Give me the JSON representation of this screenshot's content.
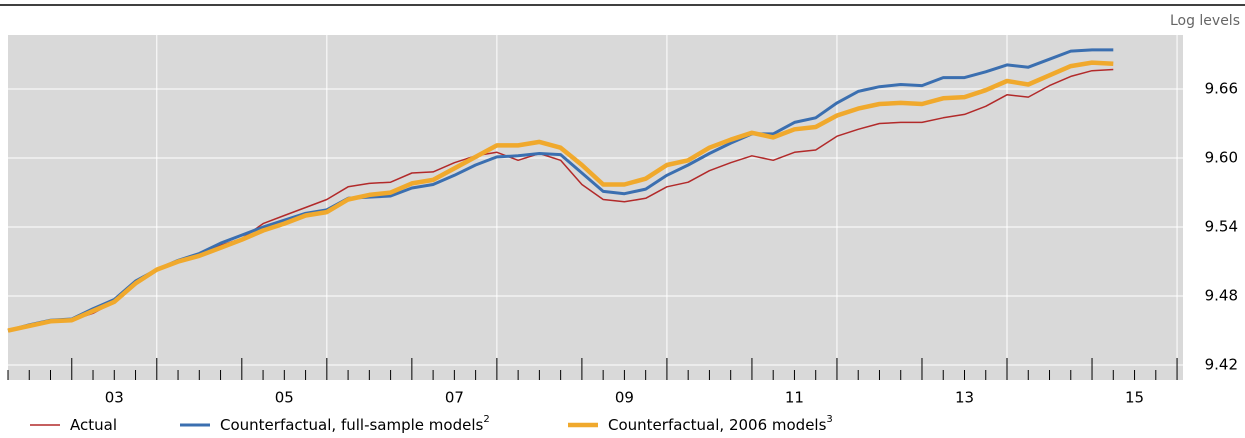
{
  "chart_data": {
    "type": "line",
    "axis_label": "Log levels",
    "x": [
      2002.25,
      2002.5,
      2002.75,
      2003,
      2003.25,
      2003.5,
      2003.75,
      2004,
      2004.25,
      2004.5,
      2004.75,
      2005,
      2005.25,
      2005.5,
      2005.75,
      2006,
      2006.25,
      2006.5,
      2006.75,
      2007,
      2007.25,
      2007.5,
      2007.75,
      2008,
      2008.25,
      2008.5,
      2008.75,
      2009,
      2009.25,
      2009.5,
      2009.75,
      2010,
      2010.25,
      2010.5,
      2010.75,
      2011,
      2011.25,
      2011.5,
      2011.75,
      2012,
      2012.25,
      2012.5,
      2012.75,
      2013,
      2013.25,
      2013.5,
      2013.75,
      2014,
      2014.25,
      2014.5,
      2014.75,
      2015,
      2015.25
    ],
    "series": [
      {
        "name": "Actual",
        "color": "#b22a2a",
        "width": 1.5,
        "values": [
          9.45,
          9.454,
          9.458,
          9.459,
          9.465,
          9.475,
          9.49,
          9.503,
          9.509,
          9.516,
          9.524,
          9.53,
          9.543,
          9.55,
          9.557,
          9.564,
          9.575,
          9.578,
          9.579,
          9.587,
          9.588,
          9.596,
          9.602,
          9.605,
          9.598,
          9.604,
          9.598,
          9.577,
          9.564,
          9.562,
          9.565,
          9.575,
          9.579,
          9.589,
          9.596,
          9.602,
          9.598,
          9.605,
          9.607,
          9.619,
          9.625,
          9.63,
          9.631,
          9.631,
          9.635,
          9.638,
          9.645,
          9.655,
          9.653,
          9.663,
          9.671,
          9.676,
          9.677
        ]
      },
      {
        "name": "Counterfactual, full-sample models",
        "footnote": "2",
        "color": "#3b6fb0",
        "width": 3,
        "values": [
          9.45,
          9.455,
          9.459,
          9.46,
          9.469,
          9.477,
          9.493,
          9.503,
          9.511,
          9.517,
          9.526,
          9.533,
          9.54,
          9.546,
          9.552,
          9.555,
          9.565,
          9.566,
          9.567,
          9.574,
          9.577,
          9.585,
          9.594,
          9.601,
          9.602,
          9.604,
          9.603,
          9.587,
          9.571,
          9.569,
          9.573,
          9.585,
          9.594,
          9.604,
          9.613,
          9.621,
          9.621,
          9.631,
          9.635,
          9.648,
          9.658,
          9.662,
          9.664,
          9.663,
          9.67,
          9.67,
          9.675,
          9.681,
          9.679,
          9.686,
          9.693,
          9.694,
          9.694
        ]
      },
      {
        "name": "Counterfactual, 2006 models",
        "footnote": "3",
        "color": "#f0a92d",
        "width": 4.5,
        "values": [
          9.45,
          9.454,
          9.458,
          9.459,
          9.467,
          9.475,
          9.491,
          9.503,
          9.51,
          9.515,
          9.522,
          9.529,
          9.537,
          9.543,
          9.55,
          9.553,
          9.564,
          9.568,
          9.57,
          9.578,
          9.581,
          9.591,
          9.601,
          9.611,
          9.611,
          9.614,
          9.609,
          9.594,
          9.577,
          9.577,
          9.582,
          9.594,
          9.598,
          9.609,
          9.616,
          9.622,
          9.618,
          9.625,
          9.627,
          9.637,
          9.643,
          9.647,
          9.648,
          9.647,
          9.652,
          9.653,
          9.659,
          9.667,
          9.664,
          9.672,
          9.68,
          9.683,
          9.682
        ]
      }
    ],
    "xlim": [
      2002.25,
      2016.07
    ],
    "xticks": [
      {
        "value": 2003.5,
        "label": "03"
      },
      {
        "value": 2005.5,
        "label": "05"
      },
      {
        "value": 2007.5,
        "label": "07"
      },
      {
        "value": 2009.5,
        "label": "09"
      },
      {
        "value": 2011.5,
        "label": "11"
      },
      {
        "value": 2013.5,
        "label": "13"
      },
      {
        "value": 2015.5,
        "label": "15"
      }
    ],
    "ylim": [
      9.407,
      9.707
    ],
    "yticks": [
      {
        "value": 9.42,
        "label": "9.42"
      },
      {
        "value": 9.48,
        "label": "9.48"
      },
      {
        "value": 9.54,
        "label": "9.54"
      },
      {
        "value": 9.6,
        "label": "9.60"
      },
      {
        "value": 9.66,
        "label": "9.66"
      }
    ],
    "grid": true,
    "background": "#d9d9d9"
  }
}
